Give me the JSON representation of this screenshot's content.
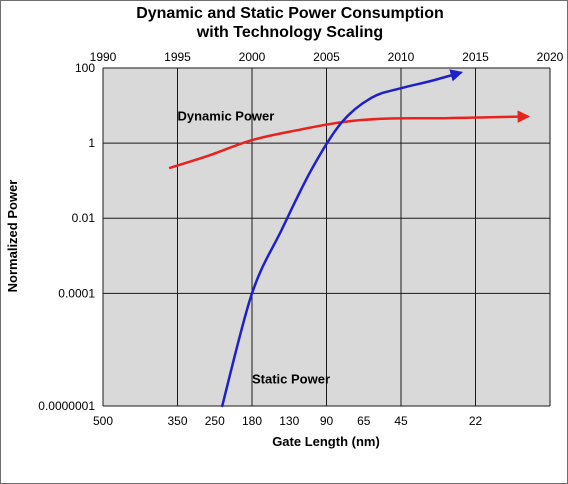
{
  "chart_data": {
    "type": "line",
    "title_lines": [
      "Dynamic and Static Power Consumption",
      "with Technology Scaling"
    ],
    "xlabel": "Gate Length (nm)",
    "ylabel": "Normalized Power",
    "y_scale": "log",
    "ylim": [
      1e-07,
      100
    ],
    "y_ticks": [
      "100",
      "1",
      "0.01",
      "0.0001",
      "0.0000001"
    ],
    "y_tick_values": [
      100,
      1,
      0.01,
      0.0001,
      1e-07
    ],
    "x_range_years": [
      1990,
      2020
    ],
    "top_axis_ticks": [
      "1990",
      "1995",
      "2000",
      "2005",
      "2010",
      "2015",
      "2020"
    ],
    "top_axis_years": [
      1990,
      1995,
      2000,
      2005,
      2010,
      2015,
      2020
    ],
    "bottom_axis_ticks": [
      {
        "label": "500",
        "year": 1990
      },
      {
        "label": "350",
        "year": 1995
      },
      {
        "label": "250",
        "year": 1997.5
      },
      {
        "label": "180",
        "year": 2000
      },
      {
        "label": "130",
        "year": 2002.5
      },
      {
        "label": "90",
        "year": 2005
      },
      {
        "label": "65",
        "year": 2007.5
      },
      {
        "label": "45",
        "year": 2010
      },
      {
        "label": "22",
        "year": 2015
      }
    ],
    "vertical_grid_years": [
      1990,
      1995,
      2000,
      2005,
      2010,
      2015,
      2020
    ],
    "grid": true,
    "plot_background": "#d9d9d9",
    "series": [
      {
        "name": "Dynamic Power",
        "color": "#e8231d",
        "points": [
          {
            "year": 1994.5,
            "value": 0.22
          },
          {
            "year": 1997,
            "value": 0.45
          },
          {
            "year": 2000,
            "value": 1.2
          },
          {
            "year": 2003,
            "value": 2.2
          },
          {
            "year": 2006,
            "value": 3.6
          },
          {
            "year": 2009,
            "value": 4.5
          },
          {
            "year": 2013,
            "value": 4.6
          },
          {
            "year": 2016,
            "value": 4.9
          },
          {
            "year": 2018.5,
            "value": 5.1
          }
        ],
        "label_year": 1995,
        "label_value": 4.0
      },
      {
        "name": "Static Power",
        "color": "#1f21c8",
        "points": [
          {
            "year": 1998,
            "value": 1e-07
          },
          {
            "year": 2000,
            "value": 0.0001
          },
          {
            "year": 2002,
            "value": 0.005
          },
          {
            "year": 2004,
            "value": 0.2
          },
          {
            "year": 2006,
            "value": 3.5
          },
          {
            "year": 2008,
            "value": 16
          },
          {
            "year": 2010,
            "value": 29
          },
          {
            "year": 2012,
            "value": 45
          },
          {
            "year": 2014,
            "value": 75
          }
        ],
        "label_year": 2000,
        "label_value": 4e-07
      }
    ]
  }
}
